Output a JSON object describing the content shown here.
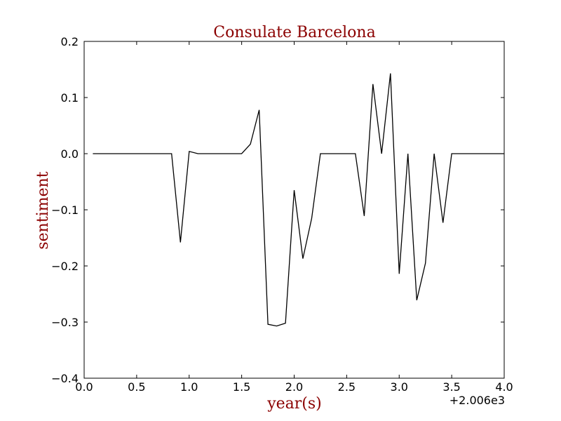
{
  "chart_data": {
    "type": "line",
    "title": "Consulate Barcelona",
    "xlabel": "year(s)",
    "ylabel": "sentiment",
    "x_offset_label": "+2.006e3",
    "xlim": [
      0.0,
      4.0
    ],
    "ylim": [
      -0.4,
      0.2
    ],
    "x_ticks": [
      0.0,
      0.5,
      1.0,
      1.5,
      2.0,
      2.5,
      3.0,
      3.5,
      4.0
    ],
    "x_tick_labels": [
      "0.0",
      "0.5",
      "1.0",
      "1.5",
      "2.0",
      "2.5",
      "3.0",
      "3.5",
      "4.0"
    ],
    "y_ticks": [
      -0.4,
      -0.3,
      -0.2,
      -0.1,
      0.0,
      0.1,
      0.2
    ],
    "y_tick_labels": [
      "−0.4",
      "−0.3",
      "−0.2",
      "−0.1",
      "0.0",
      "0.1",
      "0.2"
    ],
    "grid": false,
    "colors": {
      "title": "#8b0000",
      "labels": "#8b0000",
      "line": "#000000"
    },
    "series": [
      {
        "name": "sentiment",
        "x": [
          0.083,
          0.167,
          0.25,
          0.333,
          0.417,
          0.5,
          0.583,
          0.667,
          0.75,
          0.833,
          0.917,
          1.0,
          1.083,
          1.167,
          1.25,
          1.333,
          1.417,
          1.5,
          1.583,
          1.667,
          1.75,
          1.833,
          1.917,
          2.0,
          2.083,
          2.167,
          2.25,
          2.333,
          2.417,
          2.5,
          2.583,
          2.667,
          2.75,
          2.833,
          2.917,
          3.0,
          3.083,
          3.167,
          3.25,
          3.333,
          3.417,
          3.5,
          3.583,
          3.667,
          3.75,
          3.833,
          3.917,
          4.0
        ],
        "values": [
          0.0,
          0.0,
          0.0,
          0.0,
          0.0,
          0.0,
          0.0,
          0.0,
          0.0,
          0.0,
          -0.158,
          0.004,
          0.0,
          0.0,
          0.0,
          0.0,
          0.0,
          0.0,
          0.017,
          0.078,
          -0.304,
          -0.307,
          -0.302,
          -0.065,
          -0.187,
          -0.115,
          0.0,
          0.0,
          0.0,
          0.0,
          0.0,
          -0.111,
          0.124,
          0.0,
          0.143,
          -0.214,
          0.0,
          -0.261,
          -0.195,
          0.0,
          -0.123,
          0.0,
          0.0,
          0.0,
          0.0,
          0.0,
          0.0,
          0.0
        ]
      }
    ]
  }
}
